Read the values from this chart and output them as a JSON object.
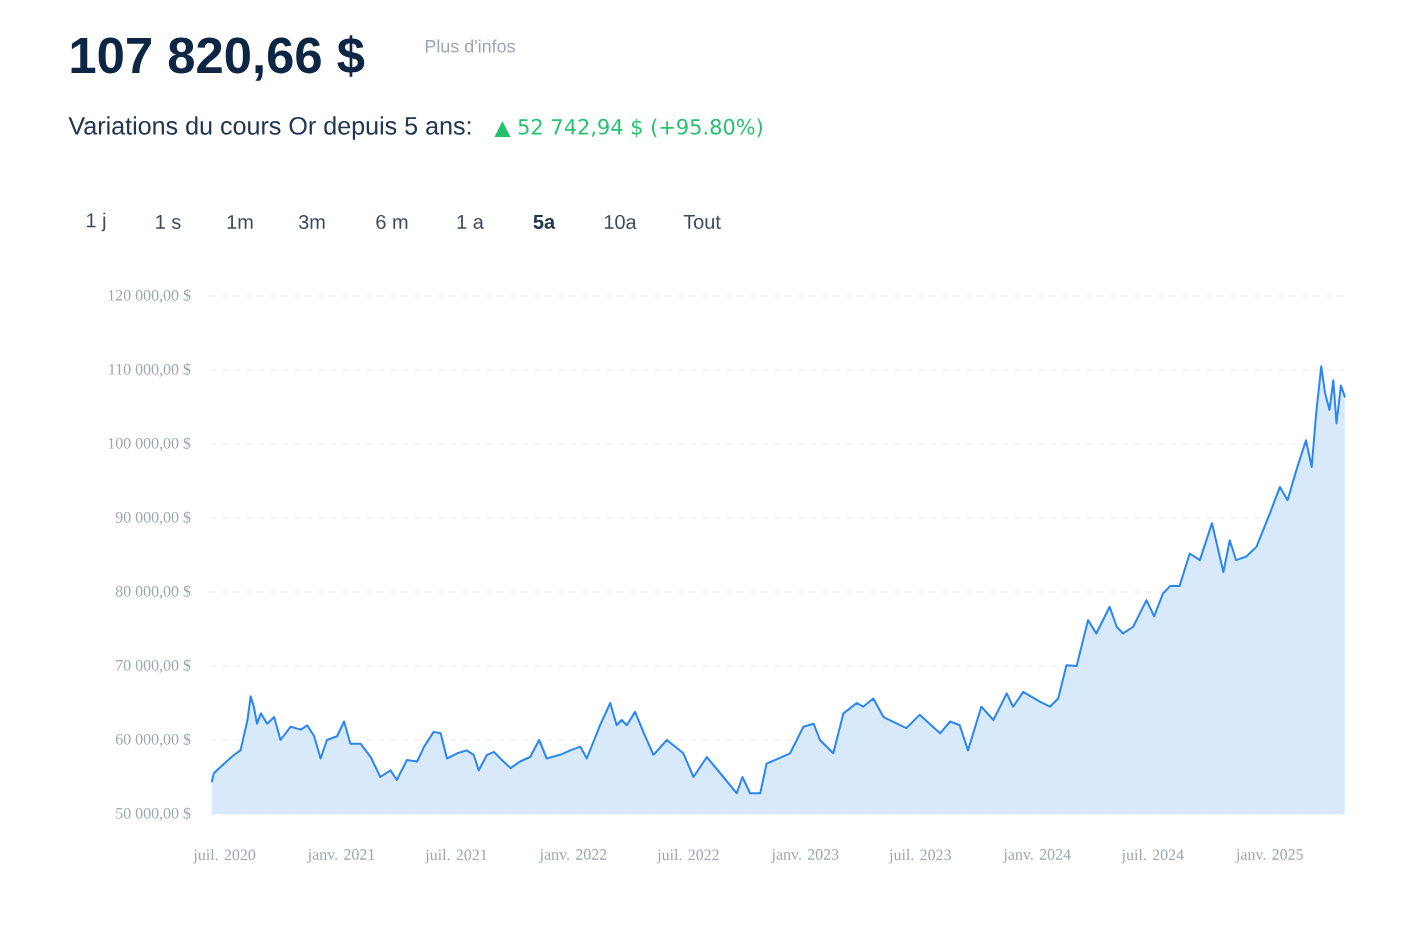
{
  "chart_data": {
    "type": "area",
    "title": "107 820,66 $",
    "subtitle": "Variations du cours Or depuis 5 ans:",
    "annotations": [
      "Plus d'infos",
      "▲ 52 742,94 $  (+95.80%)",
      "1 j",
      "1 s",
      "1m",
      "3m",
      "6 m",
      "1 a",
      "5a",
      "10a",
      "Tout"
    ],
    "color": "#2b87f0",
    "x": [
      "2020-06-11",
      "2020-06-14",
      "2020-06-30",
      "2020-07-16",
      "2020-07-26",
      "2020-08-06",
      "2020-08-11",
      "2020-08-16",
      "2020-08-21",
      "2020-08-27",
      "2020-09-06",
      "2020-09-17",
      "2020-09-27",
      "2020-10-13",
      "2020-10-29",
      "2020-11-08",
      "2020-11-19",
      "2020-11-29",
      "2020-12-09",
      "2020-12-25",
      "2021-01-05",
      "2021-01-15",
      "2021-01-31",
      "2021-02-16",
      "2021-03-03",
      "2021-03-19",
      "2021-03-29",
      "2021-04-14",
      "2021-04-30",
      "2021-05-11",
      "2021-05-26",
      "2021-06-06",
      "2021-06-16",
      "2021-07-02",
      "2021-07-17",
      "2021-07-28",
      "2021-08-05",
      "2021-08-18",
      "2021-08-29",
      "2021-09-08",
      "2021-09-24",
      "2021-10-09",
      "2021-10-25",
      "2021-11-08",
      "2021-11-20",
      "2021-12-11",
      "2021-12-27",
      "2022-01-12",
      "2022-01-22",
      "2022-02-12",
      "2022-02-28",
      "2022-03-10",
      "2022-03-18",
      "2022-03-26",
      "2022-04-08",
      "2022-04-22",
      "2022-05-07",
      "2022-05-28",
      "2022-06-23",
      "2022-07-09",
      "2022-07-30",
      "2022-08-25",
      "2022-09-15",
      "2022-09-24",
      "2022-10-06",
      "2022-10-22",
      "2022-11-01",
      "2022-12-08",
      "2022-12-29",
      "2023-01-14",
      "2023-01-24",
      "2023-02-14",
      "2023-03-02",
      "2023-03-23",
      "2023-04-02",
      "2023-04-18",
      "2023-05-04",
      "2023-06-09",
      "2023-06-30",
      "2023-08-01",
      "2023-08-17",
      "2023-09-01",
      "2023-09-14",
      "2023-10-05",
      "2023-10-24",
      "2023-11-14",
      "2023-11-24",
      "2023-12-10",
      "2024-01-05",
      "2024-01-21",
      "2024-02-03",
      "2024-02-16",
      "2024-03-03",
      "2024-03-21",
      "2024-04-03",
      "2024-04-24",
      "2024-05-05",
      "2024-05-15",
      "2024-05-31",
      "2024-06-21",
      "2024-07-03",
      "2024-07-17",
      "2024-07-28",
      "2024-08-12",
      "2024-08-28",
      "2024-09-13",
      "2024-10-02",
      "2024-10-20",
      "2024-10-30",
      "2024-11-09",
      "2024-11-25",
      "2024-12-11",
      "2025-01-01",
      "2025-01-17",
      "2025-01-29",
      "2025-02-12",
      "2025-02-27",
      "2025-03-08",
      "2025-03-15",
      "2025-03-23",
      "2025-03-29",
      "2025-04-05",
      "2025-04-11",
      "2025-04-16",
      "2025-04-23",
      "2025-04-29"
    ],
    "values": [
      54400,
      55500,
      56800,
      58000,
      58600,
      62700,
      65900,
      64500,
      62200,
      63600,
      62200,
      63100,
      60000,
      61800,
      61400,
      62000,
      60500,
      57500,
      60000,
      60500,
      62500,
      59500,
      59500,
      57700,
      55000,
      55900,
      54600,
      57300,
      57100,
      59100,
      61100,
      60900,
      57500,
      58200,
      58600,
      58000,
      55900,
      58000,
      58400,
      57500,
      56200,
      57100,
      57700,
      60000,
      57500,
      58000,
      58600,
      59100,
      57500,
      62000,
      65000,
      62000,
      62700,
      62000,
      63800,
      60900,
      58000,
      60000,
      58200,
      55000,
      57700,
      55000,
      52800,
      55000,
      52800,
      52800,
      56800,
      58200,
      61800,
      62200,
      60000,
      58200,
      63600,
      65000,
      64500,
      65600,
      63100,
      61600,
      63400,
      60900,
      62500,
      62000,
      58600,
      64500,
      62700,
      66300,
      64500,
      66500,
      65200,
      64500,
      65600,
      70100,
      70000,
      76200,
      74400,
      78000,
      75300,
      74400,
      75300,
      78900,
      76700,
      79800,
      80800,
      80800,
      85200,
      84300,
      89300,
      82700,
      87000,
      84300,
      84800,
      86100,
      90600,
      94200,
      92400,
      96500,
      100500,
      96900,
      104100,
      110500,
      106900,
      104600,
      108600,
      102800,
      107900,
      106400
    ],
    "xlim": [
      "2020-06-08",
      "2025-05-01"
    ],
    "xticks": [
      {
        "value": "2020-07-01",
        "label": "juil. 2020"
      },
      {
        "value": "2021-01-01",
        "label": "janv. 2021"
      },
      {
        "value": "2021-07-01",
        "label": "juil. 2021"
      },
      {
        "value": "2022-01-01",
        "label": "janv. 2022"
      },
      {
        "value": "2022-07-01",
        "label": "juil. 2022"
      },
      {
        "value": "2023-01-01",
        "label": "janv. 2023"
      },
      {
        "value": "2023-07-01",
        "label": "juil. 2023"
      },
      {
        "value": "2024-01-01",
        "label": "janv. 2024"
      },
      {
        "value": "2024-07-01",
        "label": "juil. 2024"
      },
      {
        "value": "2025-01-01",
        "label": "janv. 2025"
      }
    ],
    "ylim": [
      50000,
      120000
    ],
    "yticks": [
      {
        "value": 50000,
        "label": "50 000,00 $"
      },
      {
        "value": 60000,
        "label": "60 000,00 $"
      },
      {
        "value": 70000,
        "label": "70 000,00 $"
      },
      {
        "value": 80000,
        "label": "80 000,00 $"
      },
      {
        "value": 90000,
        "label": "90 000,00 $"
      },
      {
        "value": 100000,
        "label": "100 000,00 $"
      },
      {
        "value": 110000,
        "label": "110 000,00 $"
      },
      {
        "value": 120000,
        "label": "120 000,00 $"
      }
    ],
    "grid": "y"
  }
}
